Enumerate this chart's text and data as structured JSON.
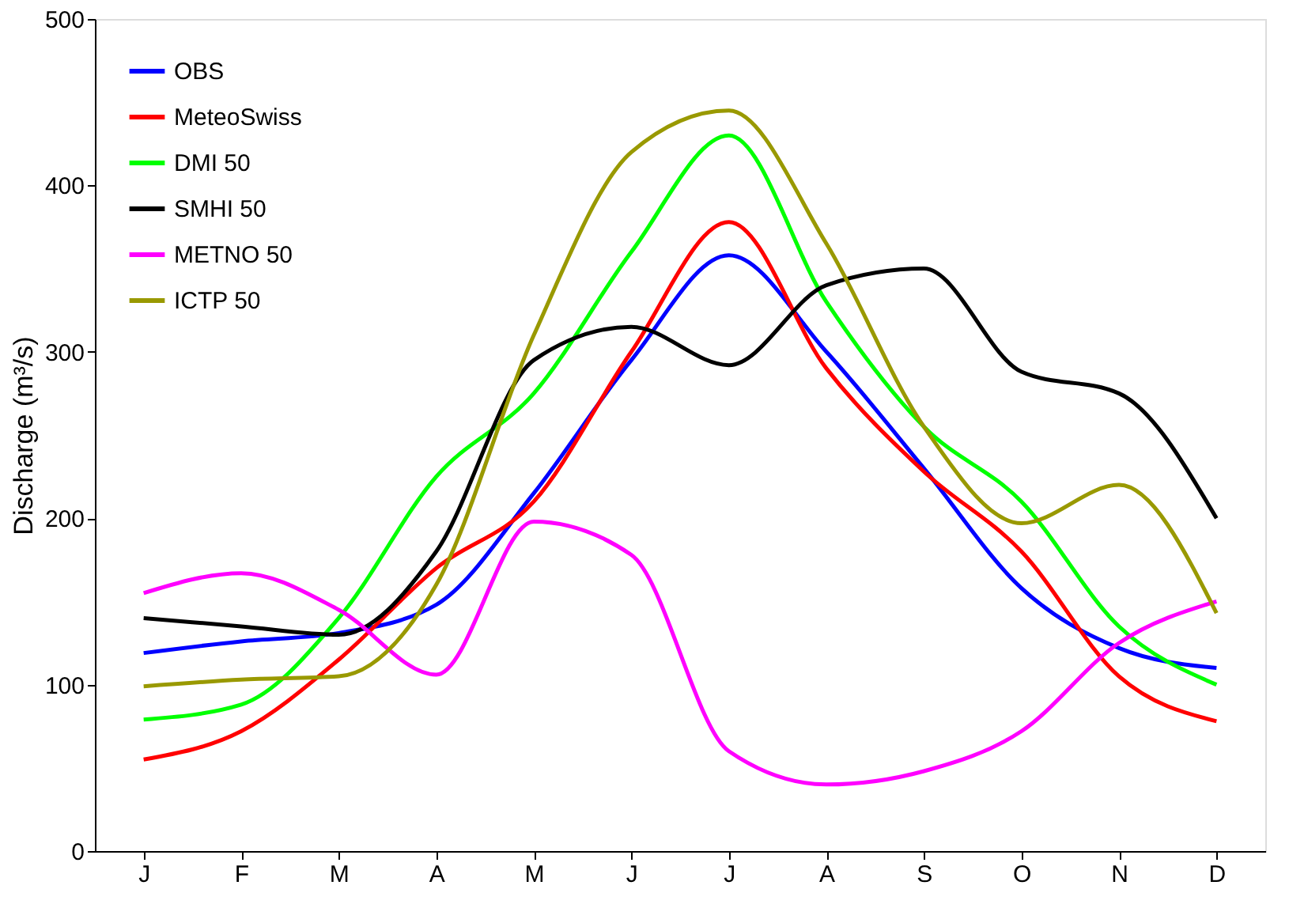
{
  "chart_data": {
    "type": "line",
    "ylabel": "Discharge (m³/s)",
    "categories": [
      "J",
      "F",
      "M",
      "A",
      "M",
      "J",
      "J",
      "A",
      "S",
      "O",
      "N",
      "D"
    ],
    "ylim": [
      0,
      500
    ],
    "yticks": [
      0,
      100,
      200,
      300,
      400,
      500
    ],
    "grid": false,
    "legend": "top left",
    "marker": "none",
    "line_style": "solid",
    "series": [
      {
        "name": "OBS",
        "color": "#0000ff",
        "values": [
          119,
          126,
          131,
          148,
          215,
          295,
          358,
          300,
          230,
          158,
          122,
          110
        ]
      },
      {
        "name": "MeteoSwiss",
        "color": "#ff0000",
        "values": [
          55,
          72,
          115,
          170,
          210,
          300,
          378,
          290,
          228,
          180,
          105,
          78
        ]
      },
      {
        "name": "DMI 50",
        "color": "#00ff00",
        "values": [
          79,
          88,
          140,
          225,
          275,
          360,
          430,
          330,
          255,
          210,
          135,
          100
        ]
      },
      {
        "name": "SMHI 50",
        "color": "#000000",
        "values": [
          140,
          135,
          130,
          180,
          295,
          315,
          292,
          340,
          350,
          288,
          275,
          200
        ]
      },
      {
        "name": "METNO 50",
        "color": "#ff00ff",
        "values": [
          155,
          167,
          145,
          106,
          198,
          178,
          60,
          40,
          48,
          72,
          125,
          150
        ]
      },
      {
        "name": "ICTP 50",
        "color": "#999900",
        "values": [
          99,
          103,
          105,
          160,
          310,
          420,
          445,
          365,
          255,
          197,
          220,
          143
        ]
      }
    ]
  }
}
